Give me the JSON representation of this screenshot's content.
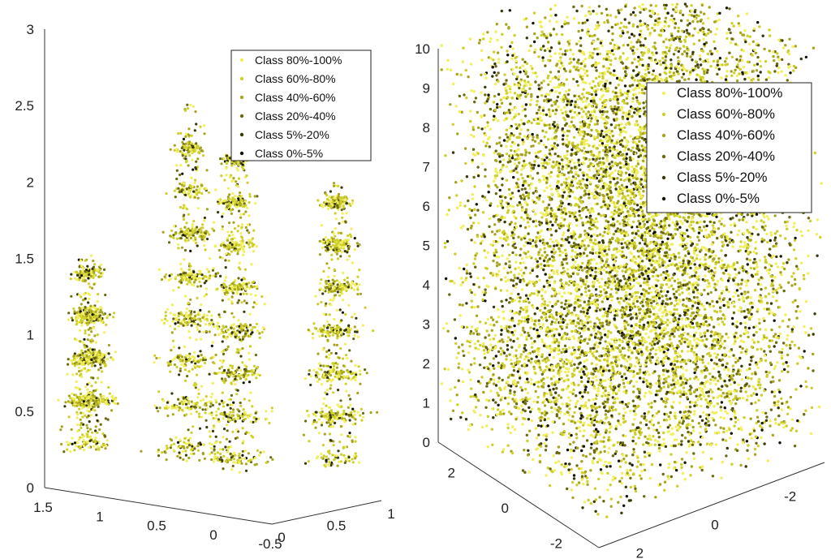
{
  "colors": {
    "class_80_100": "#f2f05a",
    "class_60_80": "#cfcf2c",
    "class_40_60": "#a7a51e",
    "class_20_40": "#6b6a10",
    "class_5_20": "#38380a",
    "class_0_5": "#141406"
  },
  "chart_data": [
    {
      "type": "scatter",
      "title": "",
      "z_ticks": [
        "0",
        "0.5",
        "1",
        "1.5",
        "2",
        "2.5",
        "3"
      ],
      "zlim": [
        0,
        3
      ],
      "x_ticks": [
        "1.5",
        "1",
        "0.5",
        "0",
        "-0.5"
      ],
      "xlim": [
        -0.5,
        1.5
      ],
      "y_ticks": [
        "0",
        "0.5",
        "1"
      ],
      "ylim": [
        0,
        1
      ],
      "legend": [
        "Class 80%-100%",
        "Class 60%-80%",
        "Class 40%-60%",
        "Class 20%-40%",
        "Class 5%-20%",
        "Class 0%-5%"
      ],
      "legend_position": "top-right",
      "grid": false,
      "clusters": [
        {
          "x": 0.7,
          "y": 0.5,
          "z_range": [
            0.2,
            2.4
          ],
          "class_weights": [
            0.3,
            0.3,
            0.2,
            0.1,
            0.07,
            0.03
          ]
        },
        {
          "x": 0.2,
          "y": 0.4,
          "z_range": [
            0.2,
            2.3
          ],
          "class_weights": [
            0.3,
            0.3,
            0.2,
            0.1,
            0.07,
            0.03
          ]
        },
        {
          "x": -0.3,
          "y": 0.8,
          "z_range": [
            0.3,
            2.1
          ],
          "class_weights": [
            0.3,
            0.3,
            0.2,
            0.1,
            0.07,
            0.03
          ]
        },
        {
          "x": 1.3,
          "y": 0.2,
          "z_range": [
            0.3,
            1.5
          ],
          "class_weights": [
            0.3,
            0.3,
            0.2,
            0.1,
            0.07,
            0.03
          ]
        }
      ]
    },
    {
      "type": "scatter",
      "title": "",
      "z_ticks": [
        "0",
        "1",
        "2",
        "3",
        "4",
        "5",
        "6",
        "7",
        "8",
        "9",
        "10"
      ],
      "zlim": [
        0,
        10
      ],
      "x_ticks": [
        "2",
        "0",
        "-2"
      ],
      "xlim": [
        -3,
        3
      ],
      "y_ticks": [
        "2",
        "0",
        "-2"
      ],
      "ylim": [
        -3,
        3
      ],
      "legend": [
        "Class 80%-100%",
        "Class 60%-80%",
        "Class 40%-60%",
        "Class 20%-40%",
        "Class 5%-20%",
        "Class 0%-5%"
      ],
      "legend_position": "top-right",
      "grid": false,
      "crown": {
        "x_range": [
          -3,
          3
        ],
        "y_range": [
          -3,
          3
        ],
        "z_range": [
          0.5,
          10.5
        ],
        "class_weights": [
          0.28,
          0.26,
          0.2,
          0.14,
          0.08,
          0.04
        ]
      }
    }
  ]
}
